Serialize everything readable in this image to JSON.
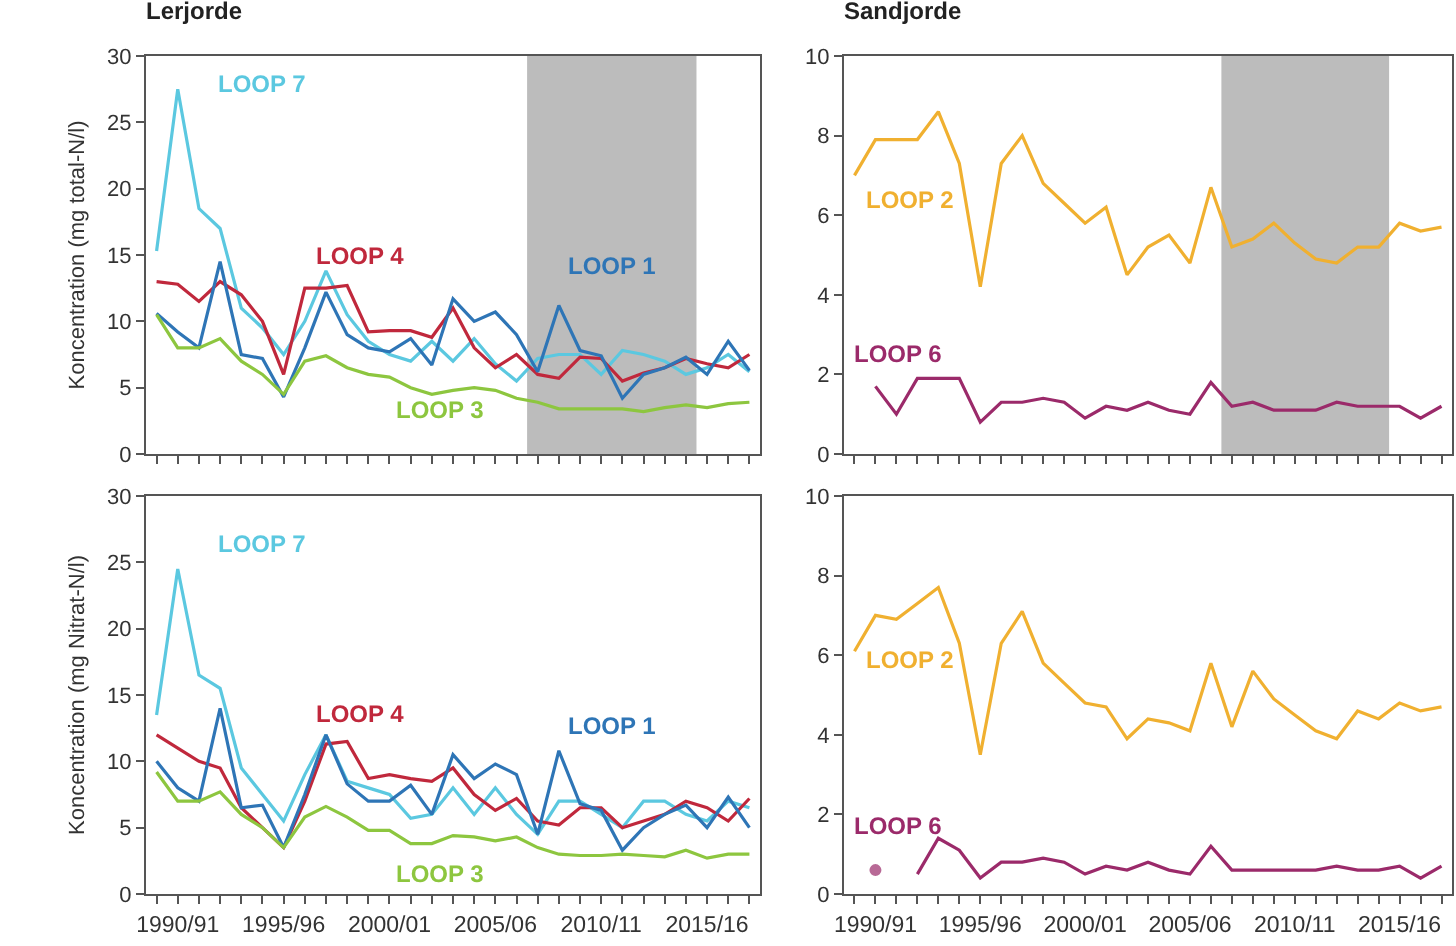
{
  "chart_data": [
    {
      "type": "line",
      "title": "Lerjorde",
      "ylabel": "Koncentration (mg total-N/l)",
      "tick_labels": "y",
      "categories": [
        null,
        null,
        null,
        null,
        null,
        null,
        null,
        null,
        null,
        null,
        null,
        null,
        null,
        null,
        null,
        null,
        null,
        null,
        null,
        null,
        null,
        null,
        null,
        null,
        null,
        null,
        null,
        null,
        null
      ],
      "series": [
        {
          "name": "LOOP 7",
          "color": "#5bc8e0",
          "values": [
            15.3,
            27.5,
            18.5,
            17,
            11,
            9.5,
            7.5,
            10,
            13.8,
            10.5,
            8.5,
            7.5,
            7,
            8.5,
            7,
            8.7,
            6.8,
            5.5,
            7.2,
            7.5,
            7.5,
            6,
            7.8,
            7.5,
            7,
            6,
            6.5,
            7.5,
            6.2
          ]
        },
        {
          "name": "LOOP 4",
          "color": "#c0283c",
          "values": [
            13,
            12.8,
            11.5,
            13,
            12,
            10,
            6,
            12.5,
            12.5,
            12.7,
            9.2,
            9.3,
            9.3,
            8.8,
            11,
            8,
            6.5,
            7.5,
            6,
            5.7,
            7.3,
            7.2,
            5.5,
            6.1,
            6.5,
            7.2,
            6.8,
            6.5,
            7.5
          ]
        },
        {
          "name": "LOOP 1",
          "color": "#2e75b6",
          "values": [
            10.6,
            9.2,
            8,
            14.5,
            7.5,
            7.2,
            4.3,
            8,
            12.2,
            9,
            8,
            7.7,
            8.7,
            6.7,
            11.7,
            10,
            10.7,
            9,
            6.2,
            11.2,
            7.8,
            7.4,
            4.2,
            6,
            6.5,
            7.3,
            6,
            8.5,
            6.3
          ]
        },
        {
          "name": "LOOP 3",
          "color": "#8dc63f",
          "values": [
            10.5,
            8,
            8,
            8.7,
            7,
            6,
            4.5,
            7,
            7.4,
            6.5,
            6,
            5.8,
            5,
            4.5,
            4.8,
            5,
            4.8,
            4.2,
            3.9,
            3.4,
            3.4,
            3.4,
            3.4,
            3.2,
            3.5,
            3.7,
            3.5,
            3.8,
            3.9
          ]
        }
      ],
      "ylim": [
        0,
        30
      ],
      "yticks": [
        0,
        5,
        10,
        15,
        20,
        25,
        30
      ]
    },
    {
      "type": "line",
      "title": "Sandjorde",
      "tick_labels": "y",
      "categories": [
        null,
        null,
        null,
        null,
        null,
        null,
        null,
        null,
        null,
        null,
        null,
        null,
        null,
        null,
        null,
        null,
        null,
        null,
        null,
        null,
        null,
        null,
        null,
        null,
        null,
        null,
        null,
        null,
        null
      ],
      "series": [
        {
          "name": "LOOP 2",
          "color": "#f0b030",
          "values": [
            7.0,
            7.9,
            7.9,
            7.9,
            8.6,
            7.3,
            4.2,
            7.3,
            8.0,
            6.8,
            6.3,
            5.8,
            6.2,
            4.5,
            5.2,
            5.5,
            4.8,
            6.7,
            5.2,
            5.4,
            5.8,
            5.3,
            4.9,
            4.8,
            5.2,
            5.2,
            5.8,
            5.6,
            5.7
          ]
        },
        {
          "name": "LOOP 6",
          "color": "#9b2a6a",
          "values": [
            null,
            1.7,
            1.0,
            1.9,
            1.9,
            1.9,
            0.8,
            1.3,
            1.3,
            1.4,
            1.3,
            0.9,
            1.2,
            1.1,
            1.3,
            1.1,
            1.0,
            1.8,
            1.2,
            1.3,
            1.1,
            1.1,
            1.1,
            1.3,
            1.2,
            1.2,
            1.2,
            0.9,
            1.2
          ]
        }
      ],
      "ylim": [
        0,
        10
      ],
      "yticks": [
        0,
        2,
        4,
        6,
        8,
        10
      ]
    },
    {
      "type": "line",
      "ylabel": "Koncentration (mg Nitrat-N/l)",
      "categories": [
        null,
        "1990/91",
        null,
        null,
        null,
        null,
        "1995/96",
        null,
        null,
        null,
        null,
        "2000/01",
        null,
        null,
        null,
        null,
        "2005/06",
        null,
        null,
        null,
        null,
        "2010/11",
        null,
        null,
        null,
        null,
        "2015/16",
        null,
        null
      ],
      "series": [
        {
          "name": "LOOP 7",
          "color": "#5bc8e0",
          "values": [
            13.5,
            24.5,
            16.5,
            15.5,
            9.5,
            7.5,
            5.5,
            9,
            12,
            8.5,
            8,
            7.5,
            5.7,
            6,
            8,
            6,
            8,
            6,
            4.5,
            7,
            7,
            6,
            5,
            7,
            7,
            6,
            5.5,
            7,
            6.5
          ]
        },
        {
          "name": "LOOP 4",
          "color": "#c0283c",
          "values": [
            12,
            11,
            10,
            9.5,
            6.5,
            5,
            3.5,
            7,
            11.3,
            11.5,
            8.7,
            9,
            8.7,
            8.5,
            9.5,
            7.5,
            6.3,
            7.2,
            5.5,
            5.2,
            6.5,
            6.5,
            5,
            5.5,
            6,
            7,
            6.5,
            5.5,
            7.2
          ]
        },
        {
          "name": "LOOP 1",
          "color": "#2e75b6",
          "values": [
            10,
            8,
            7,
            14,
            6.5,
            6.7,
            3.5,
            7.5,
            12,
            8.3,
            7,
            7,
            8.2,
            6,
            10.5,
            8.7,
            9.8,
            9,
            4.5,
            10.8,
            6.8,
            6.3,
            3.3,
            5,
            6,
            6.7,
            5,
            7.3,
            5
          ]
        },
        {
          "name": "LOOP 3",
          "color": "#8dc63f",
          "values": [
            9.2,
            7,
            7,
            7.7,
            6,
            5,
            3.5,
            5.8,
            6.6,
            5.8,
            4.8,
            4.8,
            3.8,
            3.8,
            4.4,
            4.3,
            4,
            4.3,
            3.5,
            3,
            2.9,
            2.9,
            3,
            2.9,
            2.8,
            3.3,
            2.7,
            3,
            3
          ]
        }
      ],
      "ylim": [
        0,
        30
      ],
      "yticks": [
        0,
        5,
        10,
        15,
        20,
        25,
        30
      ]
    },
    {
      "type": "line",
      "categories": [
        null,
        "1990/91",
        null,
        null,
        null,
        null,
        "1995/96",
        null,
        null,
        null,
        null,
        "2000/01",
        null,
        null,
        null,
        null,
        "2005/06",
        null,
        null,
        null,
        null,
        "2010/11",
        null,
        null,
        null,
        null,
        "2015/16",
        null,
        null
      ],
      "series": [
        {
          "name": "LOOP 2",
          "color": "#f0b030",
          "values": [
            6.1,
            7.0,
            6.9,
            7.3,
            7.7,
            6.3,
            3.5,
            6.3,
            7.1,
            5.8,
            5.3,
            4.8,
            4.7,
            3.9,
            4.4,
            4.3,
            4.1,
            5.8,
            4.2,
            5.6,
            4.9,
            4.5,
            4.1,
            3.9,
            4.6,
            4.4,
            4.8,
            4.6,
            4.7
          ]
        },
        {
          "name": "LOOP 6",
          "color": "#9b2a6a",
          "values": [
            null,
            0.6,
            null,
            0.5,
            1.4,
            1.1,
            0.4,
            0.8,
            0.8,
            0.9,
            0.8,
            0.5,
            0.7,
            0.6,
            0.8,
            0.6,
            0.5,
            1.2,
            0.6,
            0.6,
            0.6,
            0.6,
            0.6,
            0.7,
            0.6,
            0.6,
            0.7,
            0.4,
            0.7
          ]
        }
      ],
      "ylim": [
        0,
        10
      ],
      "yticks": [
        0,
        2,
        4,
        6,
        8,
        10
      ]
    }
  ]
}
